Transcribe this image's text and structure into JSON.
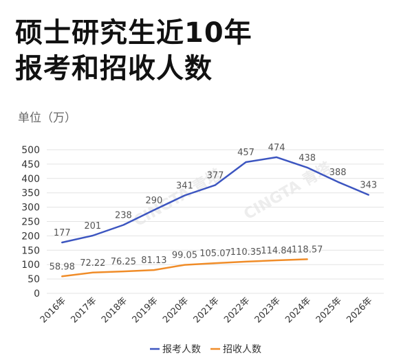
{
  "header": {
    "title_line1": "硕士研究生近10年",
    "title_line2": "报考和招收人数",
    "unit_label": "单位（万）"
  },
  "watermark": [
    "CINGTA 青塔",
    "CINGTA 青塔"
  ],
  "chart_data": {
    "type": "line",
    "categories": [
      "2016年",
      "2017年",
      "2018年",
      "2019年",
      "2020年",
      "2021年",
      "2022年",
      "2023年",
      "2024年",
      "2025年",
      "2026年"
    ],
    "ylim": [
      0,
      500
    ],
    "yticks": [
      0,
      50,
      100,
      150,
      200,
      250,
      300,
      350,
      400,
      450,
      500
    ],
    "grid": true,
    "legend_position": "bottom",
    "series": [
      {
        "name": "报考人数",
        "color": "#3c55c0",
        "values": [
          177,
          201,
          238,
          290,
          341,
          377,
          457,
          474,
          438,
          388,
          343
        ],
        "labels": [
          "177",
          "201",
          "238",
          "290",
          "341",
          "377",
          "457",
          "474",
          "438",
          "388",
          "343"
        ]
      },
      {
        "name": "招收人数",
        "color": "#f08c28",
        "values": [
          58.98,
          72.22,
          76.25,
          81.13,
          99.05,
          105.07,
          110.35,
          114.84,
          118.57,
          null,
          null
        ],
        "labels": [
          "58.98",
          "72.22",
          "76.25",
          "81.13",
          "99.05",
          "105.07",
          "110.35",
          "114.84",
          "118.57",
          null,
          null
        ]
      }
    ]
  }
}
